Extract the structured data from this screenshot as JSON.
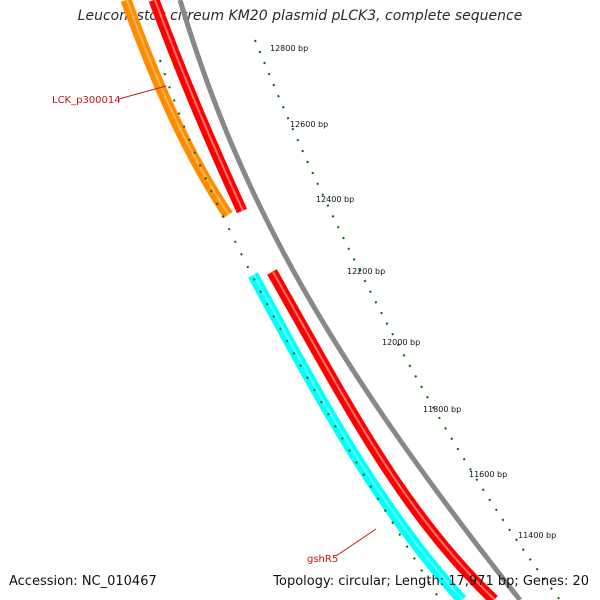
{
  "title": "Leuconostoc citreum KM20 plasmid pLCK3, complete sequence",
  "accession": "Accession: NC_010467",
  "summary": "Topology: circular; Length: 17,971 bp; Genes: 20",
  "scale_labels": [
    "12800 bp",
    "12600 bp",
    "12400 bp",
    "12200 bp",
    "12000 bp",
    "11800 bp",
    "11600 bp",
    "11400 bp"
  ],
  "gene_labels": [
    "LCK_p300014",
    "gshR5"
  ],
  "colors": {
    "title": "#2b2b2b",
    "backbone": "#888888",
    "reverse_gene": "#ff0000",
    "forward_gene_orange": "#ff8c00",
    "forward_gene_cyan": "#00ffff",
    "ticks": "#006600",
    "gene_label": "#cc1111"
  }
}
